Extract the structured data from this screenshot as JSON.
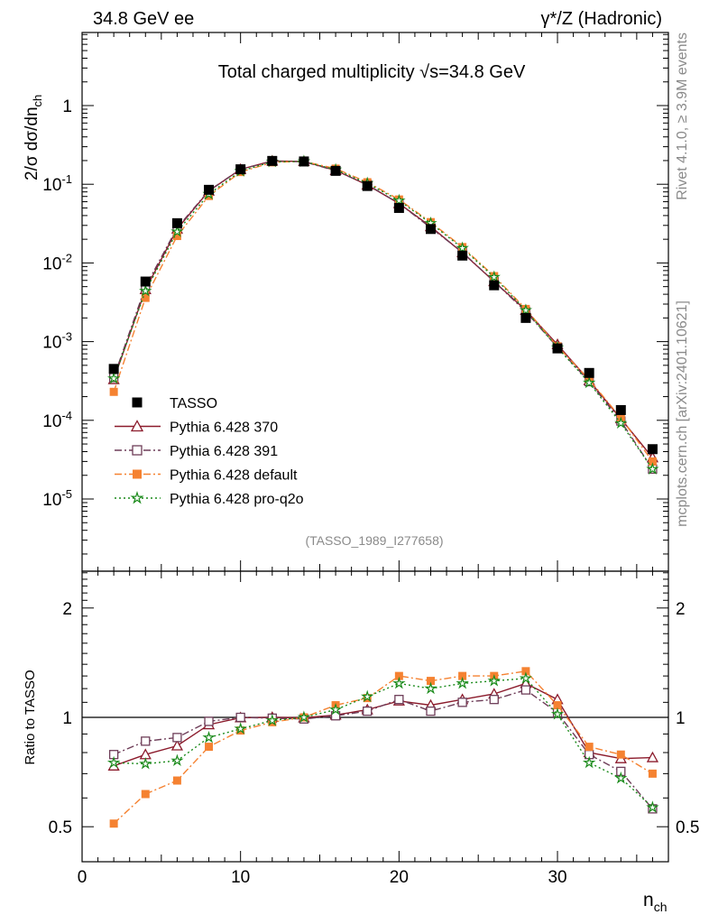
{
  "header": {
    "left": "34.8 GeV ee",
    "right": "γ*/Z (Hadronic)"
  },
  "side_text": {
    "rivet": "Rivet 4.1.0, ≥ 3.9M events",
    "mcplots": "mcplots.cern.ch [arXiv:2401.10621]"
  },
  "chart_data": [
    {
      "type": "line",
      "panel": "main",
      "title": "Total charged multiplicity √s=34.8 GeV",
      "ylabel": "2/σ  dσ/dn_ch",
      "xlabel": "n_ch",
      "yscale": "log",
      "xlim": [
        0,
        37
      ],
      "ylim": [
        1e-06,
        7
      ],
      "ytick_labels": [
        "1",
        "10^-1",
        "10^-2",
        "10^-3",
        "10^-4",
        "10^-5"
      ],
      "analysis_tag": "(TASSO_1989_I277658)",
      "legend_position": "lower-left",
      "x": [
        2,
        4,
        6,
        8,
        10,
        12,
        14,
        16,
        18,
        20,
        22,
        24,
        26,
        28,
        30,
        32,
        34,
        36
      ],
      "series": [
        {
          "name": "TASSO",
          "color": "#000000",
          "marker": "filled-square",
          "linestyle": "none",
          "values": [
            0.00045,
            0.0058,
            0.032,
            0.085,
            0.155,
            0.198,
            0.195,
            0.148,
            0.095,
            0.05,
            0.027,
            0.0124,
            0.0052,
            0.002,
            0.00082,
            0.0004,
            0.000135,
            4.3e-05
          ]
        },
        {
          "name": "Pythia 6.428 370",
          "color": "#8b1a2b",
          "marker": "open-triangle",
          "linestyle": "solid",
          "values": [
            0.00033,
            0.0046,
            0.027,
            0.082,
            0.155,
            0.198,
            0.195,
            0.15,
            0.098,
            0.057,
            0.029,
            0.0135,
            0.0058,
            0.0025,
            0.00092,
            0.00032,
            0.000105,
            3.35e-05
          ]
        },
        {
          "name": "Pythia 6.428 391",
          "color": "#6e3d58",
          "marker": "open-square",
          "linestyle": "dash-dot",
          "values": [
            0.00035,
            0.005,
            0.028,
            0.083,
            0.155,
            0.196,
            0.193,
            0.149,
            0.099,
            0.057,
            0.028,
            0.0137,
            0.0058,
            0.0024,
            0.00085,
            0.00031,
            9.8e-05,
            2.4e-05
          ]
        },
        {
          "name": "Pythia 6.428 default",
          "color": "#f58231",
          "marker": "filled-square",
          "linestyle": "dash-dot",
          "values": [
            0.00023,
            0.0036,
            0.022,
            0.071,
            0.143,
            0.19,
            0.195,
            0.158,
            0.106,
            0.064,
            0.033,
            0.0159,
            0.0068,
            0.0026,
            0.00087,
            0.00033,
            0.000107,
            3e-05
          ]
        },
        {
          "name": "Pythia 6.428 pro-q2o",
          "color": "#1a8a1a",
          "marker": "star",
          "linestyle": "dotted",
          "values": [
            0.00034,
            0.0044,
            0.025,
            0.075,
            0.147,
            0.193,
            0.195,
            0.153,
            0.103,
            0.062,
            0.032,
            0.0154,
            0.0066,
            0.0025,
            0.00084,
            0.0003,
            9.2e-05,
            2.4e-05
          ]
        }
      ]
    },
    {
      "type": "line",
      "panel": "ratio",
      "ylabel": "Ratio to TASSO",
      "xlabel": "n_ch",
      "yscale": "log",
      "xlim": [
        0,
        37
      ],
      "ylim": [
        0.4,
        2.5
      ],
      "ytick_labels": [
        "0.5",
        "1",
        "2"
      ],
      "xtick_labels": [
        "0",
        "10",
        "20",
        "30"
      ],
      "reference_line": 1,
      "x": [
        2,
        4,
        6,
        8,
        10,
        12,
        14,
        16,
        18,
        20,
        22,
        24,
        26,
        28,
        30,
        32,
        34,
        36
      ],
      "series": [
        {
          "name": "Pythia 6.428 370",
          "color": "#8b1a2b",
          "marker": "open-triangle",
          "linestyle": "solid",
          "values": [
            0.735,
            0.79,
            0.835,
            0.955,
            0.998,
            1.0,
            0.997,
            1.015,
            1.05,
            1.11,
            1.08,
            1.12,
            1.16,
            1.24,
            1.12,
            0.8,
            0.77,
            0.775
          ]
        },
        {
          "name": "Pythia 6.428 391",
          "color": "#6e3d58",
          "marker": "open-square",
          "linestyle": "dash-dot",
          "values": [
            0.79,
            0.86,
            0.88,
            0.975,
            1.0,
            0.995,
            0.99,
            1.01,
            1.04,
            1.12,
            1.04,
            1.1,
            1.12,
            1.19,
            1.03,
            0.79,
            0.71,
            0.56
          ]
        },
        {
          "name": "Pythia 6.428 default",
          "color": "#f58231",
          "marker": "filled-square",
          "linestyle": "dash-dot",
          "values": [
            0.51,
            0.615,
            0.67,
            0.83,
            0.92,
            0.97,
            1.0,
            1.08,
            1.13,
            1.3,
            1.26,
            1.3,
            1.3,
            1.34,
            1.08,
            0.83,
            0.79,
            0.7
          ]
        },
        {
          "name": "Pythia 6.428 pro-q2o",
          "color": "#1a8a1a",
          "marker": "star",
          "linestyle": "dotted",
          "values": [
            0.75,
            0.745,
            0.76,
            0.88,
            0.93,
            0.98,
            1.0,
            1.05,
            1.14,
            1.24,
            1.2,
            1.24,
            1.26,
            1.28,
            1.02,
            0.75,
            0.68,
            0.565
          ]
        }
      ]
    }
  ]
}
